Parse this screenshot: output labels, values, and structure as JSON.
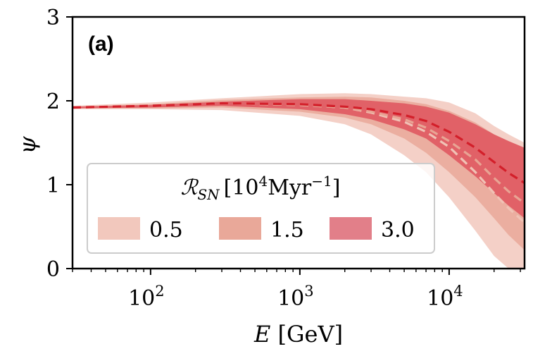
{
  "chart_data": {
    "type": "area",
    "panel_label": "(a)",
    "xlabel": "E [GeV]",
    "ylabel": "ψ",
    "xscale": "log",
    "xlim": [
      30,
      32000
    ],
    "ylim": [
      0,
      3
    ],
    "x_ticks": [
      {
        "value": 100,
        "base": "10",
        "exp": "2"
      },
      {
        "value": 1000,
        "base": "10",
        "exp": "3"
      },
      {
        "value": 10000,
        "base": "10",
        "exp": "4"
      }
    ],
    "y_ticks": [
      "0",
      "1",
      "2",
      "3"
    ],
    "y_tick_values": [
      0,
      1,
      2,
      3
    ],
    "legend": {
      "title": "R_SN [10^4 Myr^-1]",
      "title_symbol": "ℛ",
      "title_sub": "SN",
      "title_units": "[10",
      "title_exp": "4",
      "title_units_rest": "Myr",
      "title_units_exp": "−1",
      "title_close": "]",
      "placement": "lower-left",
      "entries": [
        "0.5",
        "1.5",
        "3.0"
      ]
    },
    "x": [
      30,
      100,
      300,
      1000,
      2000,
      3000,
      5000,
      7000,
      10000,
      15000,
      20000,
      25000,
      32000
    ],
    "series": [
      {
        "name": "0.5",
        "color": "#f2c8bd",
        "median": [
          1.92,
          1.94,
          1.97,
          1.95,
          1.92,
          1.86,
          1.75,
          1.63,
          1.45,
          1.15,
          0.9,
          0.72,
          0.55
        ],
        "lower": [
          1.9,
          1.9,
          1.89,
          1.82,
          1.72,
          1.6,
          1.35,
          1.15,
          0.85,
          0.45,
          0.15,
          0.0,
          0.0
        ],
        "upper": [
          1.94,
          1.98,
          2.03,
          2.08,
          2.09,
          2.08,
          2.05,
          2.03,
          1.98,
          1.85,
          1.7,
          1.6,
          1.5
        ]
      },
      {
        "name": "1.5",
        "color": "#e9a899",
        "median": [
          1.92,
          1.94,
          1.97,
          1.95,
          1.92,
          1.87,
          1.78,
          1.68,
          1.52,
          1.3,
          1.08,
          0.92,
          0.78
        ],
        "lower": [
          1.91,
          1.91,
          1.92,
          1.87,
          1.8,
          1.72,
          1.55,
          1.38,
          1.15,
          0.85,
          0.6,
          0.4,
          0.22
        ],
        "upper": [
          1.93,
          1.96,
          2.01,
          2.04,
          2.05,
          2.04,
          2.0,
          1.96,
          1.88,
          1.74,
          1.6,
          1.52,
          1.44
        ]
      },
      {
        "name": "3.0",
        "color": "#dc4450",
        "median": [
          1.92,
          1.94,
          1.97,
          1.96,
          1.93,
          1.9,
          1.83,
          1.76,
          1.63,
          1.44,
          1.27,
          1.14,
          1.02
        ],
        "lower": [
          1.91,
          1.92,
          1.94,
          1.9,
          1.84,
          1.78,
          1.66,
          1.55,
          1.35,
          1.1,
          0.9,
          0.75,
          0.6
        ],
        "upper": [
          1.93,
          1.95,
          1.99,
          2.02,
          2.02,
          2.0,
          1.97,
          1.93,
          1.86,
          1.72,
          1.6,
          1.52,
          1.44
        ]
      }
    ]
  }
}
